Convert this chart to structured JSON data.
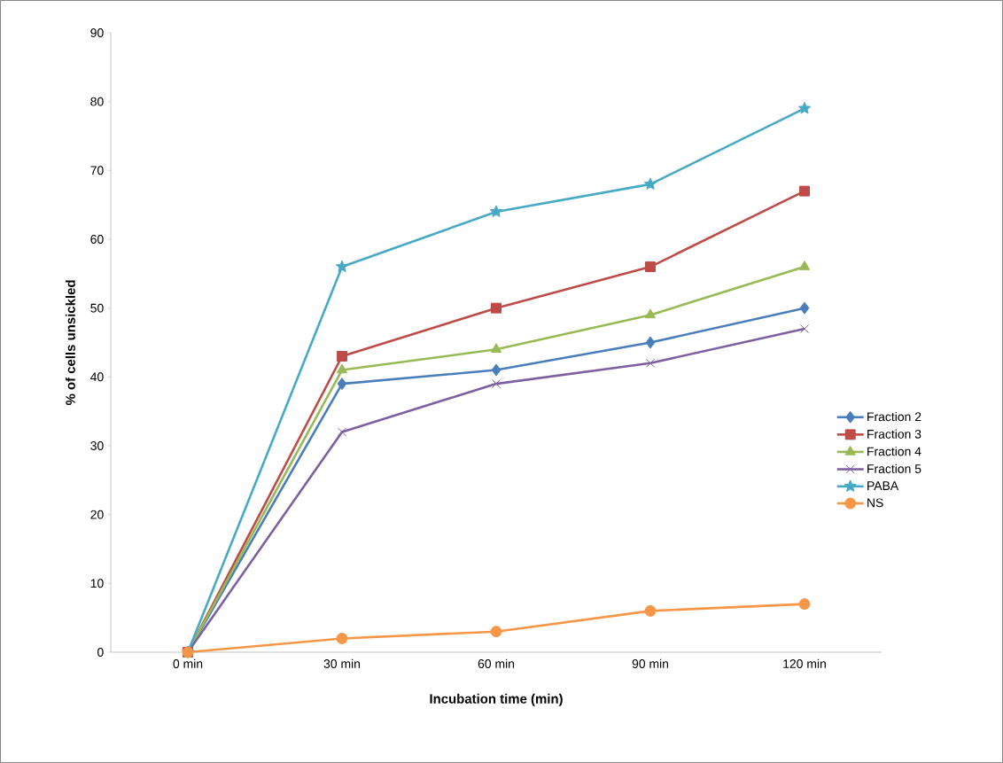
{
  "chart_data": {
    "type": "line",
    "xlabel": "Incubation time (min)",
    "ylabel": "% of cells unsickled",
    "categories": [
      "0 min",
      "30 min",
      "60 min",
      "90 min",
      "120 min"
    ],
    "ylim": [
      0,
      90
    ],
    "yticks": [
      0,
      10,
      20,
      30,
      40,
      50,
      60,
      70,
      80,
      90
    ],
    "grid": false,
    "legend": "right",
    "series": [
      {
        "name": "Fraction 2",
        "color": "#4a7ebb",
        "marker": "diamond",
        "values": [
          0,
          39,
          41,
          45,
          50
        ]
      },
      {
        "name": "Fraction 3",
        "color": "#be4b48",
        "marker": "square",
        "values": [
          0,
          43,
          50,
          56,
          67
        ]
      },
      {
        "name": "Fraction 4",
        "color": "#98b954",
        "marker": "triangle",
        "values": [
          0,
          41,
          44,
          49,
          56
        ]
      },
      {
        "name": "Fraction 5",
        "color": "#7d60a0",
        "marker": "cross",
        "values": [
          0,
          32,
          39,
          42,
          47
        ]
      },
      {
        "name": "PABA",
        "color": "#46aac5",
        "marker": "star",
        "values": [
          0,
          56,
          64,
          68,
          79
        ]
      },
      {
        "name": "NS",
        "color": "#f79646",
        "marker": "circle",
        "values": [
          0,
          2,
          3,
          6,
          7
        ]
      }
    ]
  }
}
